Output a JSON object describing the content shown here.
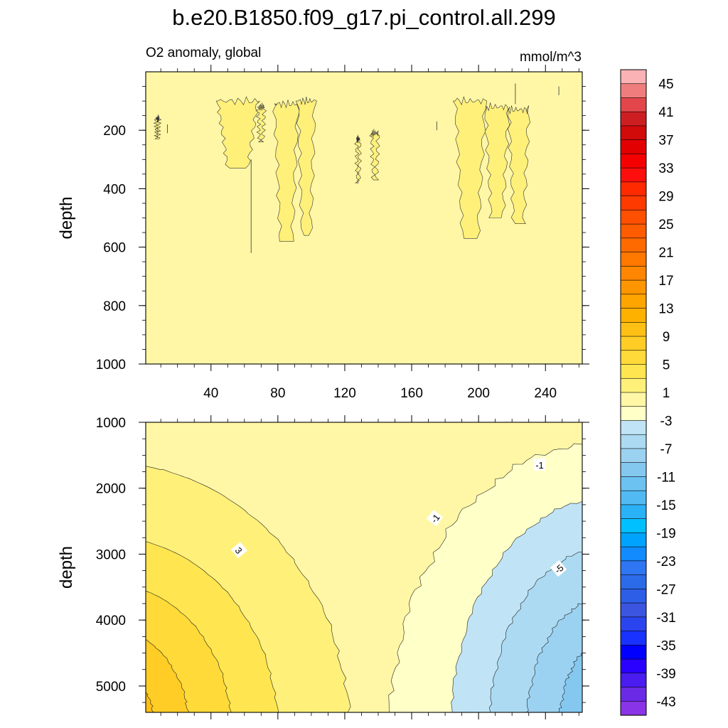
{
  "chart_data": {
    "type": "contour",
    "title": "b.e20.B1850.f09_g17.pi_control.all.299",
    "subtitle_left": "O2 anomaly, global",
    "subtitle_right": "mmol/m^3",
    "ylabel": "depth",
    "x_ticks": [
      40,
      80,
      120,
      160,
      200,
      240
    ],
    "x_range": [
      1,
      262
    ],
    "panels": [
      {
        "id": "upper",
        "ylabel": "depth",
        "y_range": [
          0,
          1000
        ],
        "y_ticks": [
          200,
          400,
          600,
          800,
          1000
        ],
        "y_reversed": true,
        "background_level_range": [
          -1,
          1
        ],
        "notes": "Shallow field near zero with scattered positive anomaly (1 to 3) plumes around x 42-102 and x 185-230, depth ~100-580"
      },
      {
        "id": "lower",
        "ylabel": "depth",
        "y_range": [
          1000,
          5400
        ],
        "y_ticks": [
          1000,
          2000,
          3000,
          4000,
          5000
        ],
        "y_reversed": true,
        "contour_labels": [
          "3",
          "-1",
          "-1",
          "-5"
        ],
        "notes": "Positive anomaly (up to ~15) increasing with depth toward low x; negative anomaly (down to ~-13) increasing with depth toward high x"
      }
    ],
    "colorbar": {
      "levels": [
        -45,
        -43,
        -41,
        -39,
        -37,
        -35,
        -33,
        -31,
        -29,
        -27,
        -25,
        -23,
        -21,
        -19,
        -17,
        -15,
        -13,
        -11,
        -9,
        -7,
        -5,
        -3,
        -1,
        1,
        3,
        5,
        7,
        9,
        11,
        13,
        15,
        17,
        19,
        21,
        23,
        25,
        27,
        29,
        31,
        33,
        35,
        37,
        39,
        41,
        43,
        45
      ],
      "labels": [
        "45",
        "41",
        "37",
        "33",
        "29",
        "25",
        "21",
        "17",
        "13",
        "9",
        "5",
        "1",
        "-3",
        "-7",
        "-11",
        "-15",
        "-19",
        "-23",
        "-27",
        "-31",
        "-35",
        "-39",
        "-43"
      ],
      "colors_top_to_bottom": [
        "#fbb2b4",
        "#ef7d7d",
        "#e3464a",
        "#cd1f22",
        "#d10a0a",
        "#e20000",
        "#f50000",
        "#ff0e0e",
        "#ff2a00",
        "#ff3a00",
        "#ff4f00",
        "#ff5c00",
        "#ff6a00",
        "#ff7800",
        "#ff8600",
        "#ff9600",
        "#ffa500",
        "#ffb100",
        "#ffc015",
        "#ffcd26",
        "#ffda38",
        "#ffe650",
        "#fff07a",
        "#fff7a6",
        "#ffffc8",
        "#c0e4f6",
        "#acdaf2",
        "#9cd2f1",
        "#84c8ef",
        "#6cc2f1",
        "#52baf3",
        "#2ab1f6",
        "#00c0ff",
        "#00a4ff",
        "#128bff",
        "#2f76f3",
        "#2c6be8",
        "#2c5ee8",
        "#3b55e0",
        "#2a45f0",
        "#1932ff",
        "#0000ff",
        "#2a00ff",
        "#4a1cf0",
        "#6a2ae6",
        "#8a34e8"
      ]
    }
  }
}
